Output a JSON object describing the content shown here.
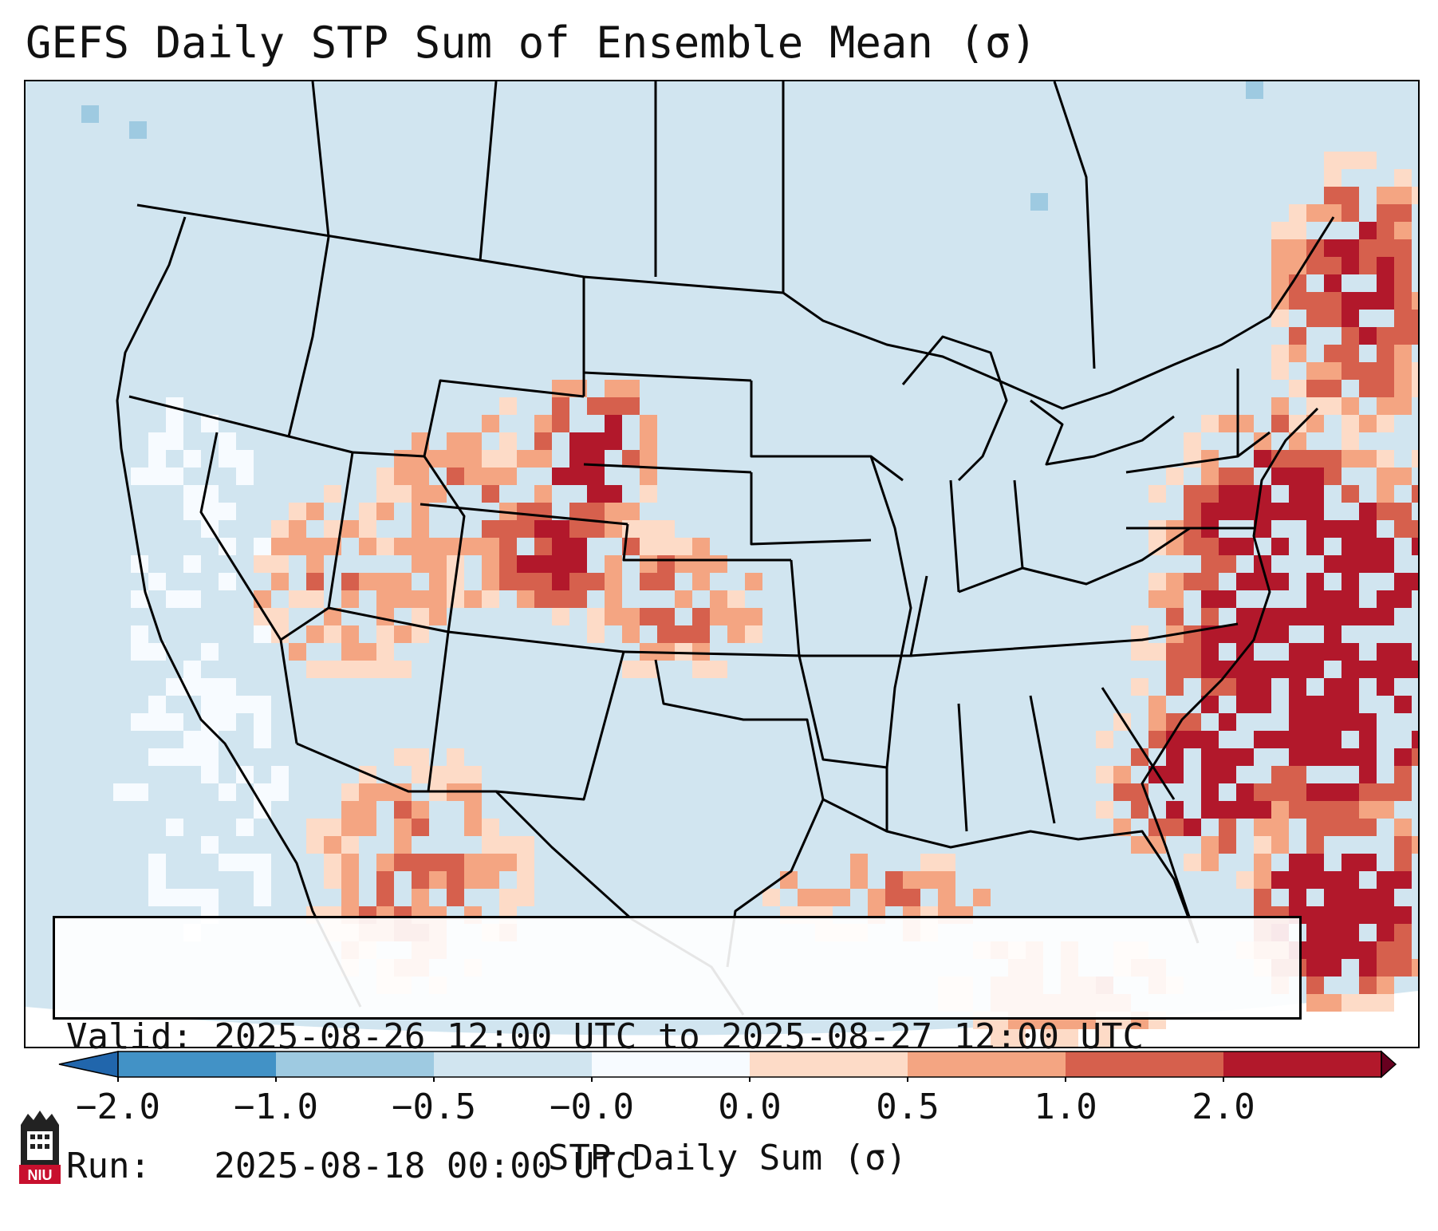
{
  "title": "GEFS Daily STP Sum of Ensemble Mean (σ)",
  "info": {
    "valid_line": "Valid: 2025-08-26 12:00 UTC to 2025-08-27 12:00 UTC",
    "run_line": "Run:   2025-08-18 00:00 UTC"
  },
  "colorbar": {
    "label": "STP Daily Sum (σ)",
    "ticks": [
      "−2.0",
      "−1.0",
      "−0.5",
      "−0.0",
      "0.0",
      "0.5",
      "1.0",
      "2.0"
    ],
    "colors": [
      "#4292c6",
      "#9ecae1",
      "#d1e5f0",
      "#f7fbff",
      "#fddbc7",
      "#f4a582",
      "#d6604d",
      "#b2182b"
    ],
    "under_color": "#2166ac",
    "over_color": "#67001f"
  },
  "logo": {
    "text": "NIU",
    "color": "#c8102e"
  },
  "map": {
    "background_color": "#d1e5f0",
    "outside_color": "#ffffff",
    "line_color": "#000000"
  }
}
